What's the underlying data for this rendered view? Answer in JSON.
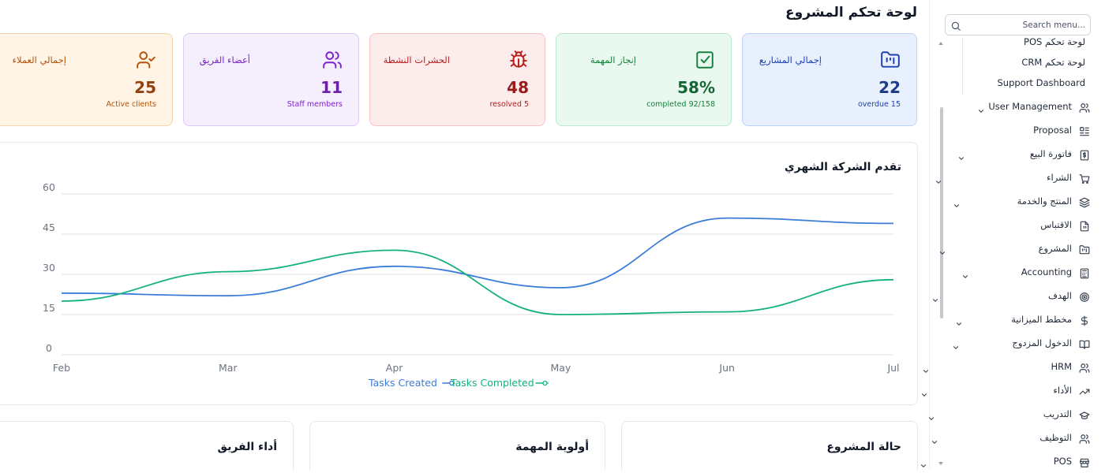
{
  "main": {
    "title": "لوحة تحكم المشروع"
  },
  "cards": [
    {
      "title": "إجمالي المشاريع",
      "value": "22",
      "sub": "overdue 15",
      "icon": "folder-kanban-icon",
      "color": "#1e40af",
      "bg": "#e9f0fd"
    },
    {
      "title": "إنجاز المهمة",
      "value": "58%",
      "sub": "completed 92/158",
      "icon": "check-square-icon",
      "color": "#15803d",
      "bg": "#e9f9ef"
    },
    {
      "title": "الحشرات النشطة",
      "value": "48",
      "sub": "resolved 5",
      "icon": "bug-icon",
      "color": "#b91c1c",
      "bg": "#fdecec"
    },
    {
      "title": "أعضاء الفريق",
      "value": "11",
      "sub": "Staff members",
      "icon": "users-icon",
      "color": "#7e22ce",
      "bg": "#f5eefd"
    },
    {
      "title": "إجمالي العملاء",
      "value": "25",
      "sub": "Active clients",
      "icon": "user-check-icon",
      "color": "#b45309",
      "bg": "#fff4e6"
    }
  ],
  "chart": {
    "title": "تقدم الشركة الشهري"
  },
  "chart_data": {
    "type": "line",
    "x": [
      "Feb",
      "Mar",
      "Apr",
      "May",
      "Jun",
      "Jul"
    ],
    "ylim": [
      0,
      60
    ],
    "yticks": [
      "0",
      "15",
      "30",
      "45",
      "60"
    ],
    "grid": true,
    "legend": "bottom",
    "series": [
      {
        "name": "Tasks Created",
        "color": "#3b7dd8",
        "values": [
          23,
          22,
          33,
          25,
          51,
          49
        ]
      },
      {
        "name": "Tasks Completed",
        "color": "#14b27a",
        "values": [
          20,
          31,
          39,
          15,
          16,
          28
        ]
      }
    ]
  },
  "bottom_cards": [
    {
      "title": "حالة المشروع"
    },
    {
      "title": "أولوية المهمة"
    },
    {
      "title": "أداء الفريق"
    }
  ],
  "sidebar": {
    "search_placeholder": "Search menu...",
    "items": [
      {
        "label": "لوحة تحكم POS",
        "icon": "",
        "chevron": false,
        "sub": true
      },
      {
        "label": "لوحة تحكم CRM",
        "icon": "",
        "chevron": false,
        "sub": true
      },
      {
        "label": "Support Dashboard",
        "icon": "",
        "chevron": false,
        "sub": true
      },
      {
        "label": "User Management",
        "icon": "users-icon",
        "chevron": true
      },
      {
        "label": "Proposal",
        "icon": "proposal-icon",
        "chevron": false
      },
      {
        "label": "فاتورة البيع",
        "icon": "invoice-icon",
        "chevron": true
      },
      {
        "label": "الشراء",
        "icon": "cart-icon",
        "chevron": true
      },
      {
        "label": "المنتج والخدمة",
        "icon": "layers-icon",
        "chevron": true
      },
      {
        "label": "الاقتباس",
        "icon": "file-quote-icon",
        "chevron": false
      },
      {
        "label": "المشروع",
        "icon": "folder-icon",
        "chevron": true
      },
      {
        "label": "Accounting",
        "icon": "calculator-icon",
        "chevron": true
      },
      {
        "label": "الهدف",
        "icon": "target-icon",
        "chevron": true
      },
      {
        "label": "مخطط الميزانية",
        "icon": "dollar-icon",
        "chevron": true
      },
      {
        "label": "الدخول المزدوج",
        "icon": "book-icon",
        "chevron": true
      },
      {
        "label": "HRM",
        "icon": "hrm-users-icon",
        "chevron": true
      },
      {
        "label": "الأداء",
        "icon": "trending-up-icon",
        "chevron": true
      },
      {
        "label": "التدريب",
        "icon": "graduation-cap-icon",
        "chevron": true
      },
      {
        "label": "التوظيف",
        "icon": "recruit-users-icon",
        "chevron": true
      },
      {
        "label": "POS",
        "icon": "store-icon",
        "chevron": true
      }
    ]
  }
}
